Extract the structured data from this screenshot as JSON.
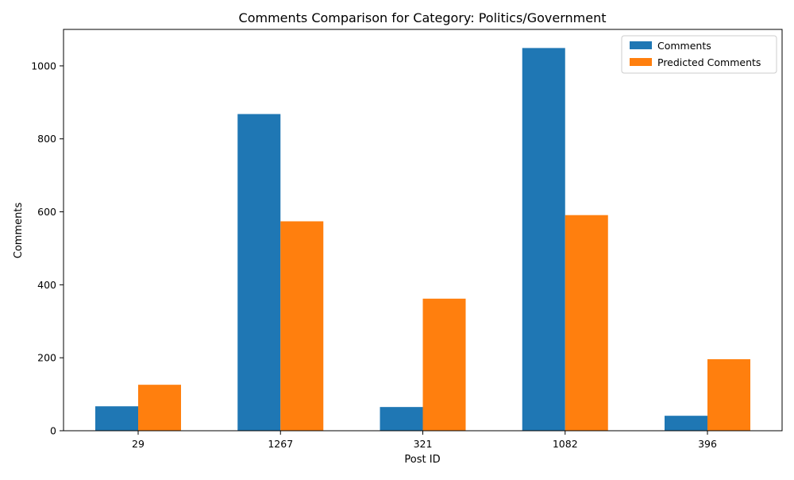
{
  "chart_data": {
    "type": "bar",
    "title": "Comments Comparison for Category: Politics/Government",
    "xlabel": "Post ID",
    "ylabel": "Comments",
    "categories": [
      "29",
      "1267",
      "321",
      "1082",
      "396"
    ],
    "series": [
      {
        "name": "Comments",
        "color": "#1f77b4",
        "values": [
          67,
          868,
          65,
          1049,
          41
        ]
      },
      {
        "name": "Predicted Comments",
        "color": "#ff7f0e",
        "values": [
          126,
          574,
          362,
          591,
          196
        ]
      }
    ],
    "ylim": [
      0,
      1100
    ],
    "yticks": [
      0,
      200,
      400,
      600,
      800,
      1000
    ],
    "grid": false,
    "legend_position": "top-right"
  }
}
